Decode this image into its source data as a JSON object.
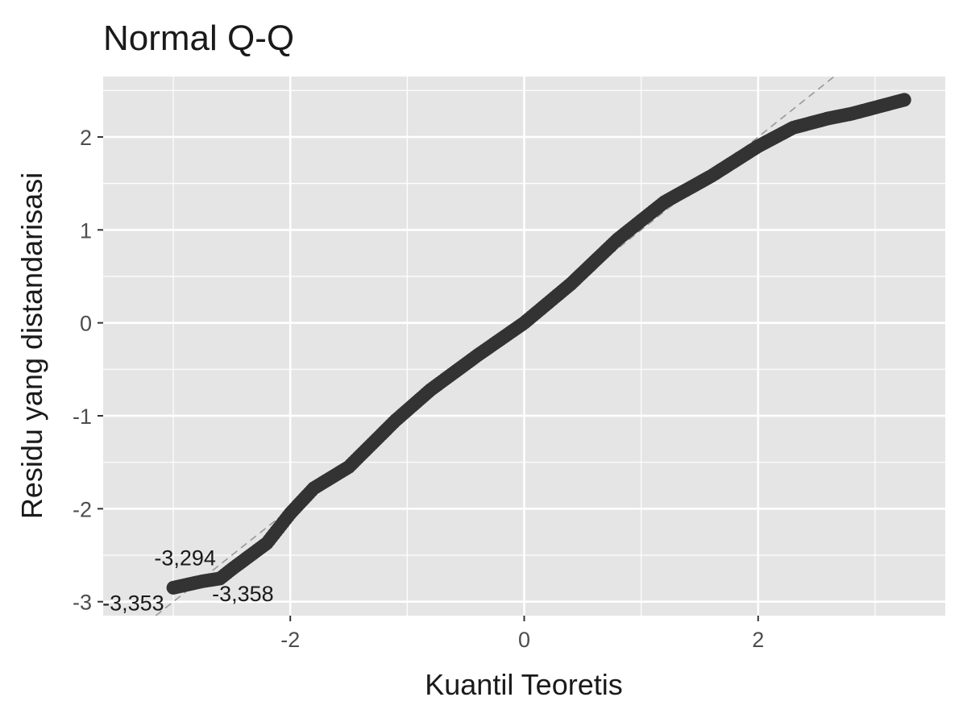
{
  "chart_data": {
    "type": "scatter",
    "title": "Normal Q-Q",
    "xlabel": "Kuantil Teoretis",
    "ylabel": "Residu yang distandarisasi",
    "xlim": [
      -3.6,
      3.6
    ],
    "ylim": [
      -3.15,
      2.65
    ],
    "x_ticks": [
      -2,
      0,
      2
    ],
    "x_tick_labels": [
      "-2",
      "0",
      "2"
    ],
    "y_ticks": [
      -3,
      -2,
      -1,
      0,
      1,
      2
    ],
    "y_tick_labels": [
      "-3",
      "-2",
      "-1",
      "0",
      "1",
      "2"
    ],
    "grid": true,
    "reference_line": {
      "slope": 1,
      "intercept": 0,
      "style": "dashed"
    },
    "colors": {
      "panel": "#e5e5e5",
      "grid": "#ffffff",
      "points": "#333333",
      "refline": "#999999"
    },
    "series": [
      {
        "points": [
          [
            -3.0,
            -2.85
          ],
          [
            -2.75,
            -2.78
          ],
          [
            -2.6,
            -2.75
          ],
          [
            -2.5,
            -2.65
          ],
          [
            -2.2,
            -2.37
          ],
          [
            -2.0,
            -2.05
          ],
          [
            -1.8,
            -1.78
          ],
          [
            -1.5,
            -1.55
          ],
          [
            -1.1,
            -1.05
          ],
          [
            -0.8,
            -0.72
          ],
          [
            -0.4,
            -0.35
          ],
          [
            0.0,
            0.0
          ],
          [
            0.4,
            0.42
          ],
          [
            0.8,
            0.9
          ],
          [
            1.2,
            1.3
          ],
          [
            1.6,
            1.58
          ],
          [
            2.0,
            1.9
          ],
          [
            2.3,
            2.1
          ],
          [
            2.6,
            2.2
          ],
          [
            2.8,
            2.25
          ],
          [
            2.95,
            2.3
          ],
          [
            3.25,
            2.4
          ]
        ]
      }
    ],
    "annotations": [
      {
        "label": "-3,294",
        "x": -2.75,
        "y": -2.78
      },
      {
        "label": "-3,353",
        "x": -3.0,
        "y": -2.85
      },
      {
        "label": "-3,358",
        "x": -2.6,
        "y": -2.75
      }
    ]
  }
}
